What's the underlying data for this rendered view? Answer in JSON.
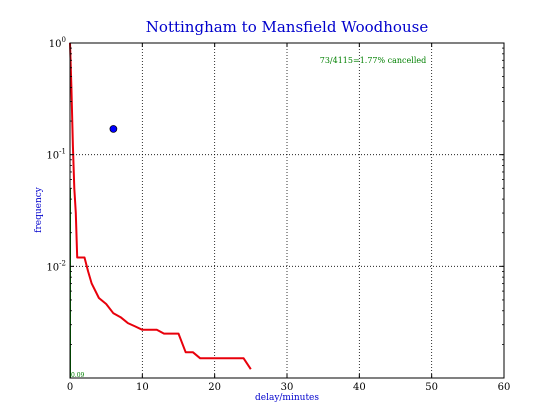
{
  "chart_data": {
    "type": "line",
    "title": "Nottingham to Mansfield Woodhouse",
    "xlabel": "delay/minutes",
    "ylabel": "frequency",
    "xlim": [
      0,
      60
    ],
    "ylim": [
      0.001,
      1
    ],
    "yscale": "log",
    "grid": true,
    "x_ticks": [
      0,
      10,
      20,
      30,
      40,
      50,
      60
    ],
    "x_tick_labels": [
      "0",
      "10",
      "20",
      "30",
      "40",
      "50",
      "60"
    ],
    "y_ticks": [
      1,
      0.1,
      0.01
    ],
    "y_tick_labels": [
      {
        "base": "10",
        "exp": "0"
      },
      {
        "base": "10",
        "exp": "-1"
      },
      {
        "base": "10",
        "exp": "-2"
      }
    ],
    "annotations": {
      "cancelled_text": "73/4115=1.77% cancelled",
      "origin_label": "0.09"
    },
    "series": [
      {
        "color": "#e8000b",
        "x": [
          0,
          0.2,
          0.4,
          0.6,
          0.8,
          1,
          1.5,
          2,
          2.5,
          3,
          4,
          5,
          6,
          7,
          8,
          9,
          10,
          11,
          12,
          13,
          14,
          15,
          16,
          17,
          18,
          19,
          20,
          21,
          22,
          23,
          24,
          25
        ],
        "y": [
          1,
          0.4,
          0.12,
          0.05,
          0.03,
          0.012,
          0.012,
          0.012,
          0.009,
          0.007,
          0.0052,
          0.0046,
          0.0038,
          0.0035,
          0.0031,
          0.0029,
          0.0027,
          0.0027,
          0.0027,
          0.0025,
          0.0025,
          0.0025,
          0.0017,
          0.0017,
          0.0015,
          0.0015,
          0.0015,
          0.0015,
          0.0015,
          0.0015,
          0.0015,
          0.0012
        ]
      }
    ],
    "point": {
      "x": 6,
      "y": 0.17,
      "color": "#0000ff"
    },
    "baseline": {
      "x": 0,
      "y": [
        0.001,
        0.05
      ],
      "color": "#008000"
    }
  }
}
